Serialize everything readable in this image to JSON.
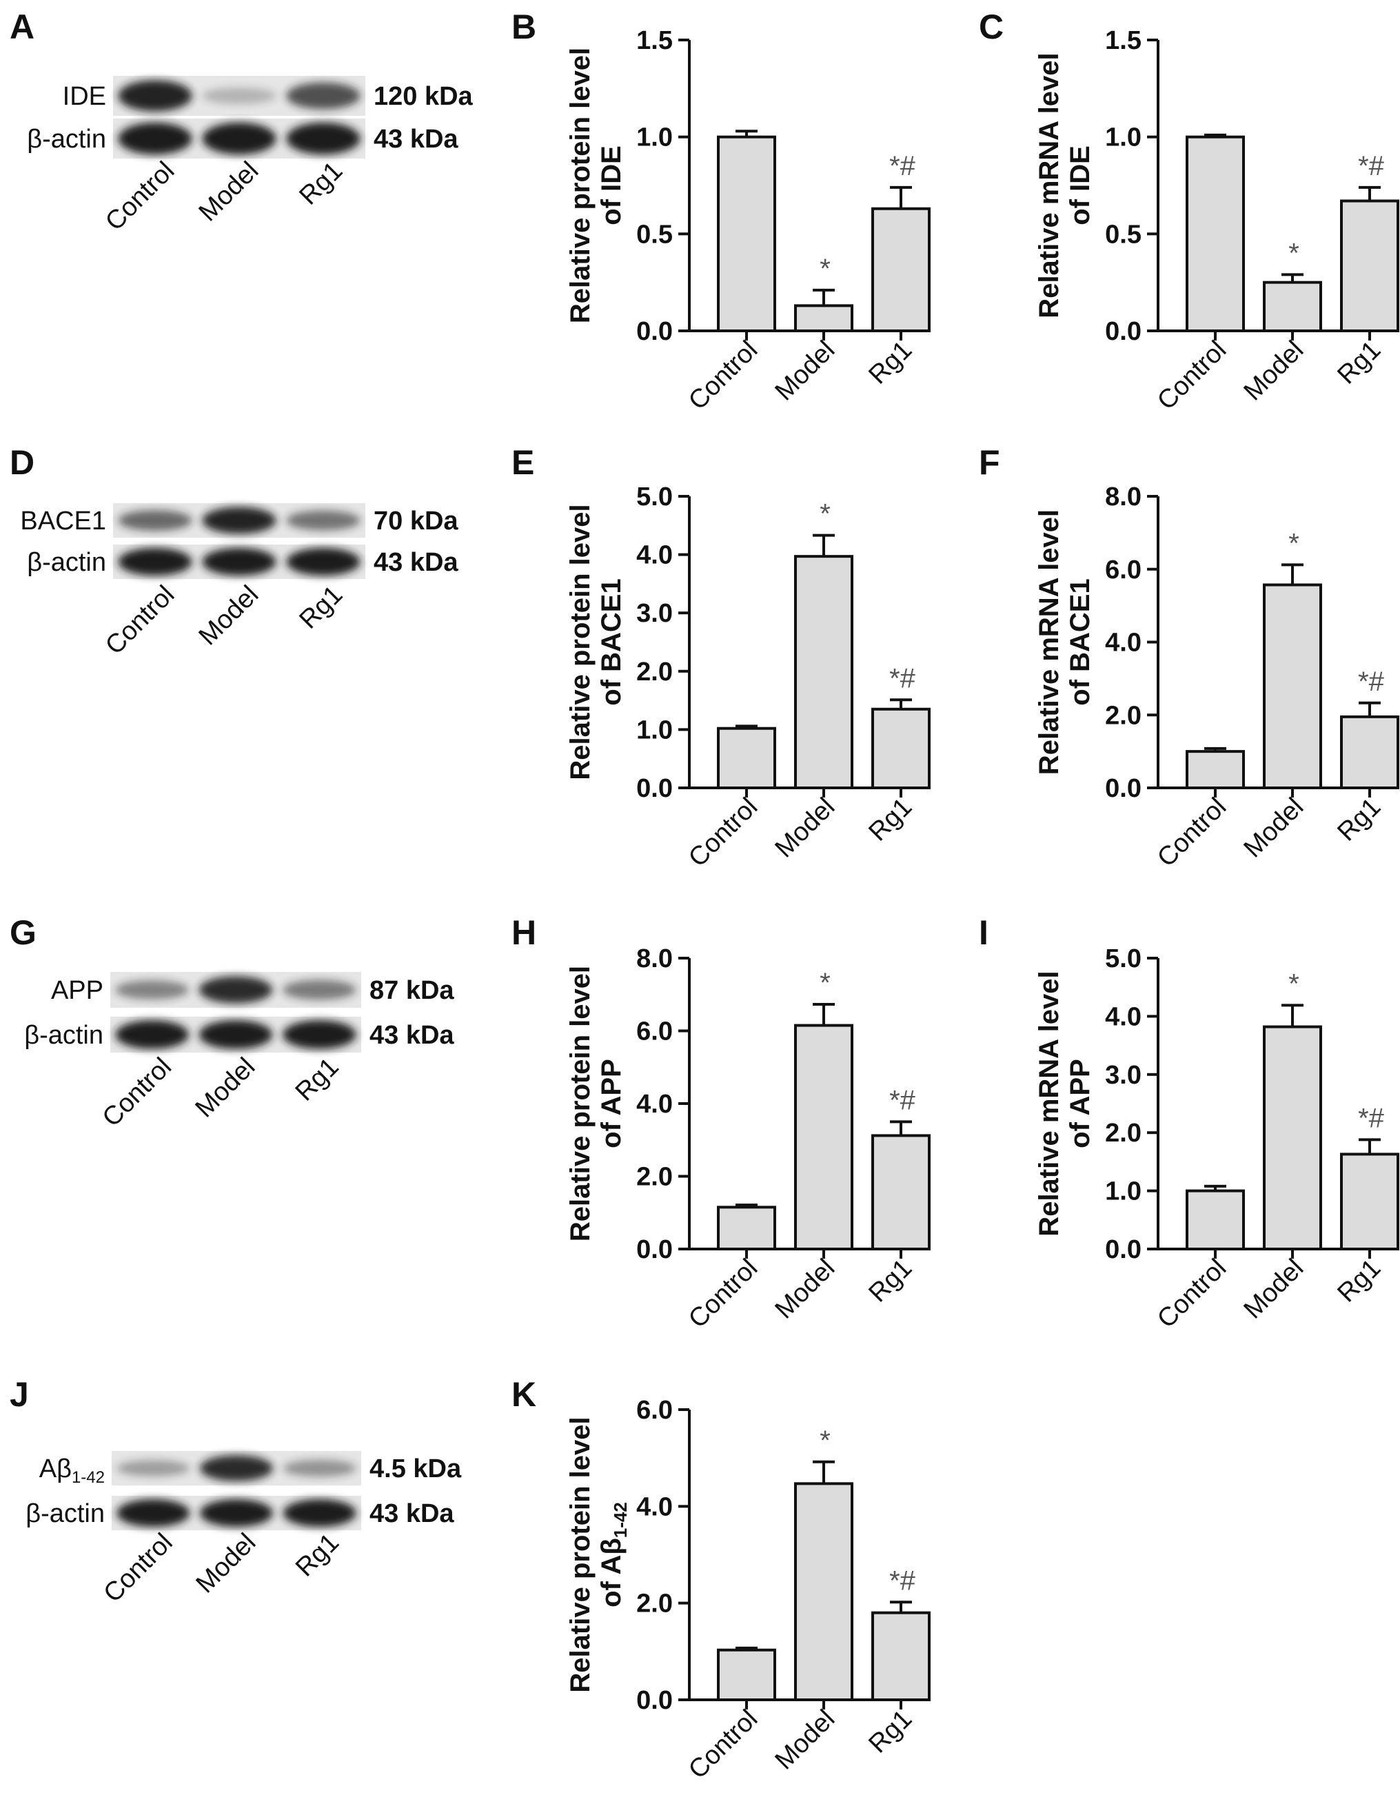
{
  "blots": [
    {
      "panel": "A",
      "bands": [
        {
          "label": "IDE",
          "size": "120 kDa",
          "intensities": [
            0.95,
            0.12,
            0.7
          ]
        },
        {
          "label": "β-actin",
          "size": "43 kDa",
          "intensities": [
            1.0,
            1.0,
            1.0
          ]
        }
      ],
      "lanes": [
        "Control",
        "Model",
        "Rg1"
      ]
    },
    {
      "panel": "D",
      "bands": [
        {
          "label": "BACE1",
          "size": "70 kDa",
          "intensities": [
            0.55,
            0.95,
            0.5
          ]
        },
        {
          "label": "β-actin",
          "size": "43 kDa",
          "intensities": [
            1.0,
            1.0,
            1.0
          ]
        }
      ],
      "lanes": [
        "Control",
        "Model",
        "Rg1"
      ]
    },
    {
      "panel": "G",
      "bands": [
        {
          "label": "APP",
          "size": "87 kDa",
          "intensities": [
            0.4,
            0.9,
            0.45
          ]
        },
        {
          "label": "β-actin",
          "size": "43 kDa",
          "intensities": [
            1.0,
            1.0,
            1.0
          ]
        }
      ],
      "lanes": [
        "Control",
        "Model",
        "Rg1"
      ]
    },
    {
      "panel": "J",
      "bands": [
        {
          "label": "Aβ",
          "label_sub": "1-42",
          "size": "4.5 kDa",
          "intensities": [
            0.25,
            0.9,
            0.3
          ]
        },
        {
          "label": "β-actin",
          "size": "43 kDa",
          "intensities": [
            1.0,
            1.0,
            1.0
          ]
        }
      ],
      "lanes": [
        "Control",
        "Model",
        "Rg1"
      ]
    }
  ],
  "chart_data": [
    {
      "panel": "B",
      "type": "bar",
      "ylabel_lines": [
        "Relative protein level",
        "of IDE"
      ],
      "categories": [
        "Control",
        "Model",
        "Rg1"
      ],
      "values": [
        1.0,
        0.13,
        0.63
      ],
      "errors": [
        0.03,
        0.08,
        0.11
      ],
      "annotations": [
        "",
        "*",
        "*#"
      ],
      "ylim": [
        0,
        1.5
      ],
      "yticks": [
        0,
        0.5,
        1.0,
        1.5
      ],
      "ytick_labels": [
        "0.0",
        "0.5",
        "1.0",
        "1.5"
      ]
    },
    {
      "panel": "C",
      "type": "bar",
      "ylabel_lines": [
        "Relative mRNA level",
        "of IDE"
      ],
      "categories": [
        "Control",
        "Model",
        "Rg1"
      ],
      "values": [
        1.0,
        0.25,
        0.67
      ],
      "errors": [
        0.01,
        0.04,
        0.07
      ],
      "annotations": [
        "",
        "*",
        "*#"
      ],
      "ylim": [
        0,
        1.5
      ],
      "yticks": [
        0,
        0.5,
        1.0,
        1.5
      ],
      "ytick_labels": [
        "0.0",
        "0.5",
        "1.0",
        "1.5"
      ]
    },
    {
      "panel": "E",
      "type": "bar",
      "ylabel_lines": [
        "Relative protein level",
        "of BACE1"
      ],
      "categories": [
        "Control",
        "Model",
        "Rg1"
      ],
      "values": [
        1.02,
        3.97,
        1.35
      ],
      "errors": [
        0.04,
        0.36,
        0.16
      ],
      "annotations": [
        "",
        "*",
        "*#"
      ],
      "ylim": [
        0,
        5.0
      ],
      "yticks": [
        0,
        1,
        2,
        3,
        4,
        5
      ],
      "ytick_labels": [
        "0.0",
        "1.0",
        "2.0",
        "3.0",
        "4.0",
        "5.0"
      ]
    },
    {
      "panel": "F",
      "type": "bar",
      "ylabel_lines": [
        "Relative mRNA level",
        "of BACE1"
      ],
      "categories": [
        "Control",
        "Model",
        "Rg1"
      ],
      "values": [
        1.0,
        5.57,
        1.95
      ],
      "errors": [
        0.08,
        0.55,
        0.38
      ],
      "annotations": [
        "",
        "*",
        "*#"
      ],
      "ylim": [
        0,
        8.0
      ],
      "yticks": [
        0,
        2,
        4,
        6,
        8
      ],
      "ytick_labels": [
        "0.0",
        "2.0",
        "4.0",
        "6.0",
        "8.0"
      ]
    },
    {
      "panel": "H",
      "type": "bar",
      "ylabel_lines": [
        "Relative protein level",
        "of APP"
      ],
      "categories": [
        "Control",
        "Model",
        "Rg1"
      ],
      "values": [
        1.15,
        6.15,
        3.12
      ],
      "errors": [
        0.06,
        0.58,
        0.38
      ],
      "annotations": [
        "",
        "*",
        "*#"
      ],
      "ylim": [
        0,
        8.0
      ],
      "yticks": [
        0,
        2,
        4,
        6,
        8
      ],
      "ytick_labels": [
        "0.0",
        "2.0",
        "4.0",
        "6.0",
        "8.0"
      ]
    },
    {
      "panel": "I",
      "type": "bar",
      "ylabel_lines": [
        "Relative mRNA level",
        "of APP"
      ],
      "categories": [
        "Control",
        "Model",
        "Rg1"
      ],
      "values": [
        1.0,
        3.82,
        1.63
      ],
      "errors": [
        0.08,
        0.37,
        0.25
      ],
      "annotations": [
        "",
        "*",
        "*#"
      ],
      "ylim": [
        0,
        5.0
      ],
      "yticks": [
        0,
        1,
        2,
        3,
        4,
        5
      ],
      "ytick_labels": [
        "0.0",
        "1.0",
        "2.0",
        "3.0",
        "4.0",
        "5.0"
      ]
    },
    {
      "panel": "K",
      "type": "bar",
      "ylabel_lines": [
        "Relative protein level",
        "of Aβ"
      ],
      "ylabel_sub": "1-42",
      "categories": [
        "Control",
        "Model",
        "Rg1"
      ],
      "values": [
        1.03,
        4.47,
        1.8
      ],
      "errors": [
        0.04,
        0.45,
        0.22
      ],
      "annotations": [
        "",
        "*",
        "*#"
      ],
      "ylim": [
        0,
        6.0
      ],
      "yticks": [
        0,
        2,
        4,
        6
      ],
      "ytick_labels": [
        "0.0",
        "2.0",
        "4.0",
        "6.0"
      ]
    }
  ],
  "colors": {
    "bar_fill": "#dcdcdc",
    "stroke": "#111111",
    "band": "#1a1a1a",
    "blot_bg": "#e6e6e6",
    "annotation": "#555555"
  }
}
